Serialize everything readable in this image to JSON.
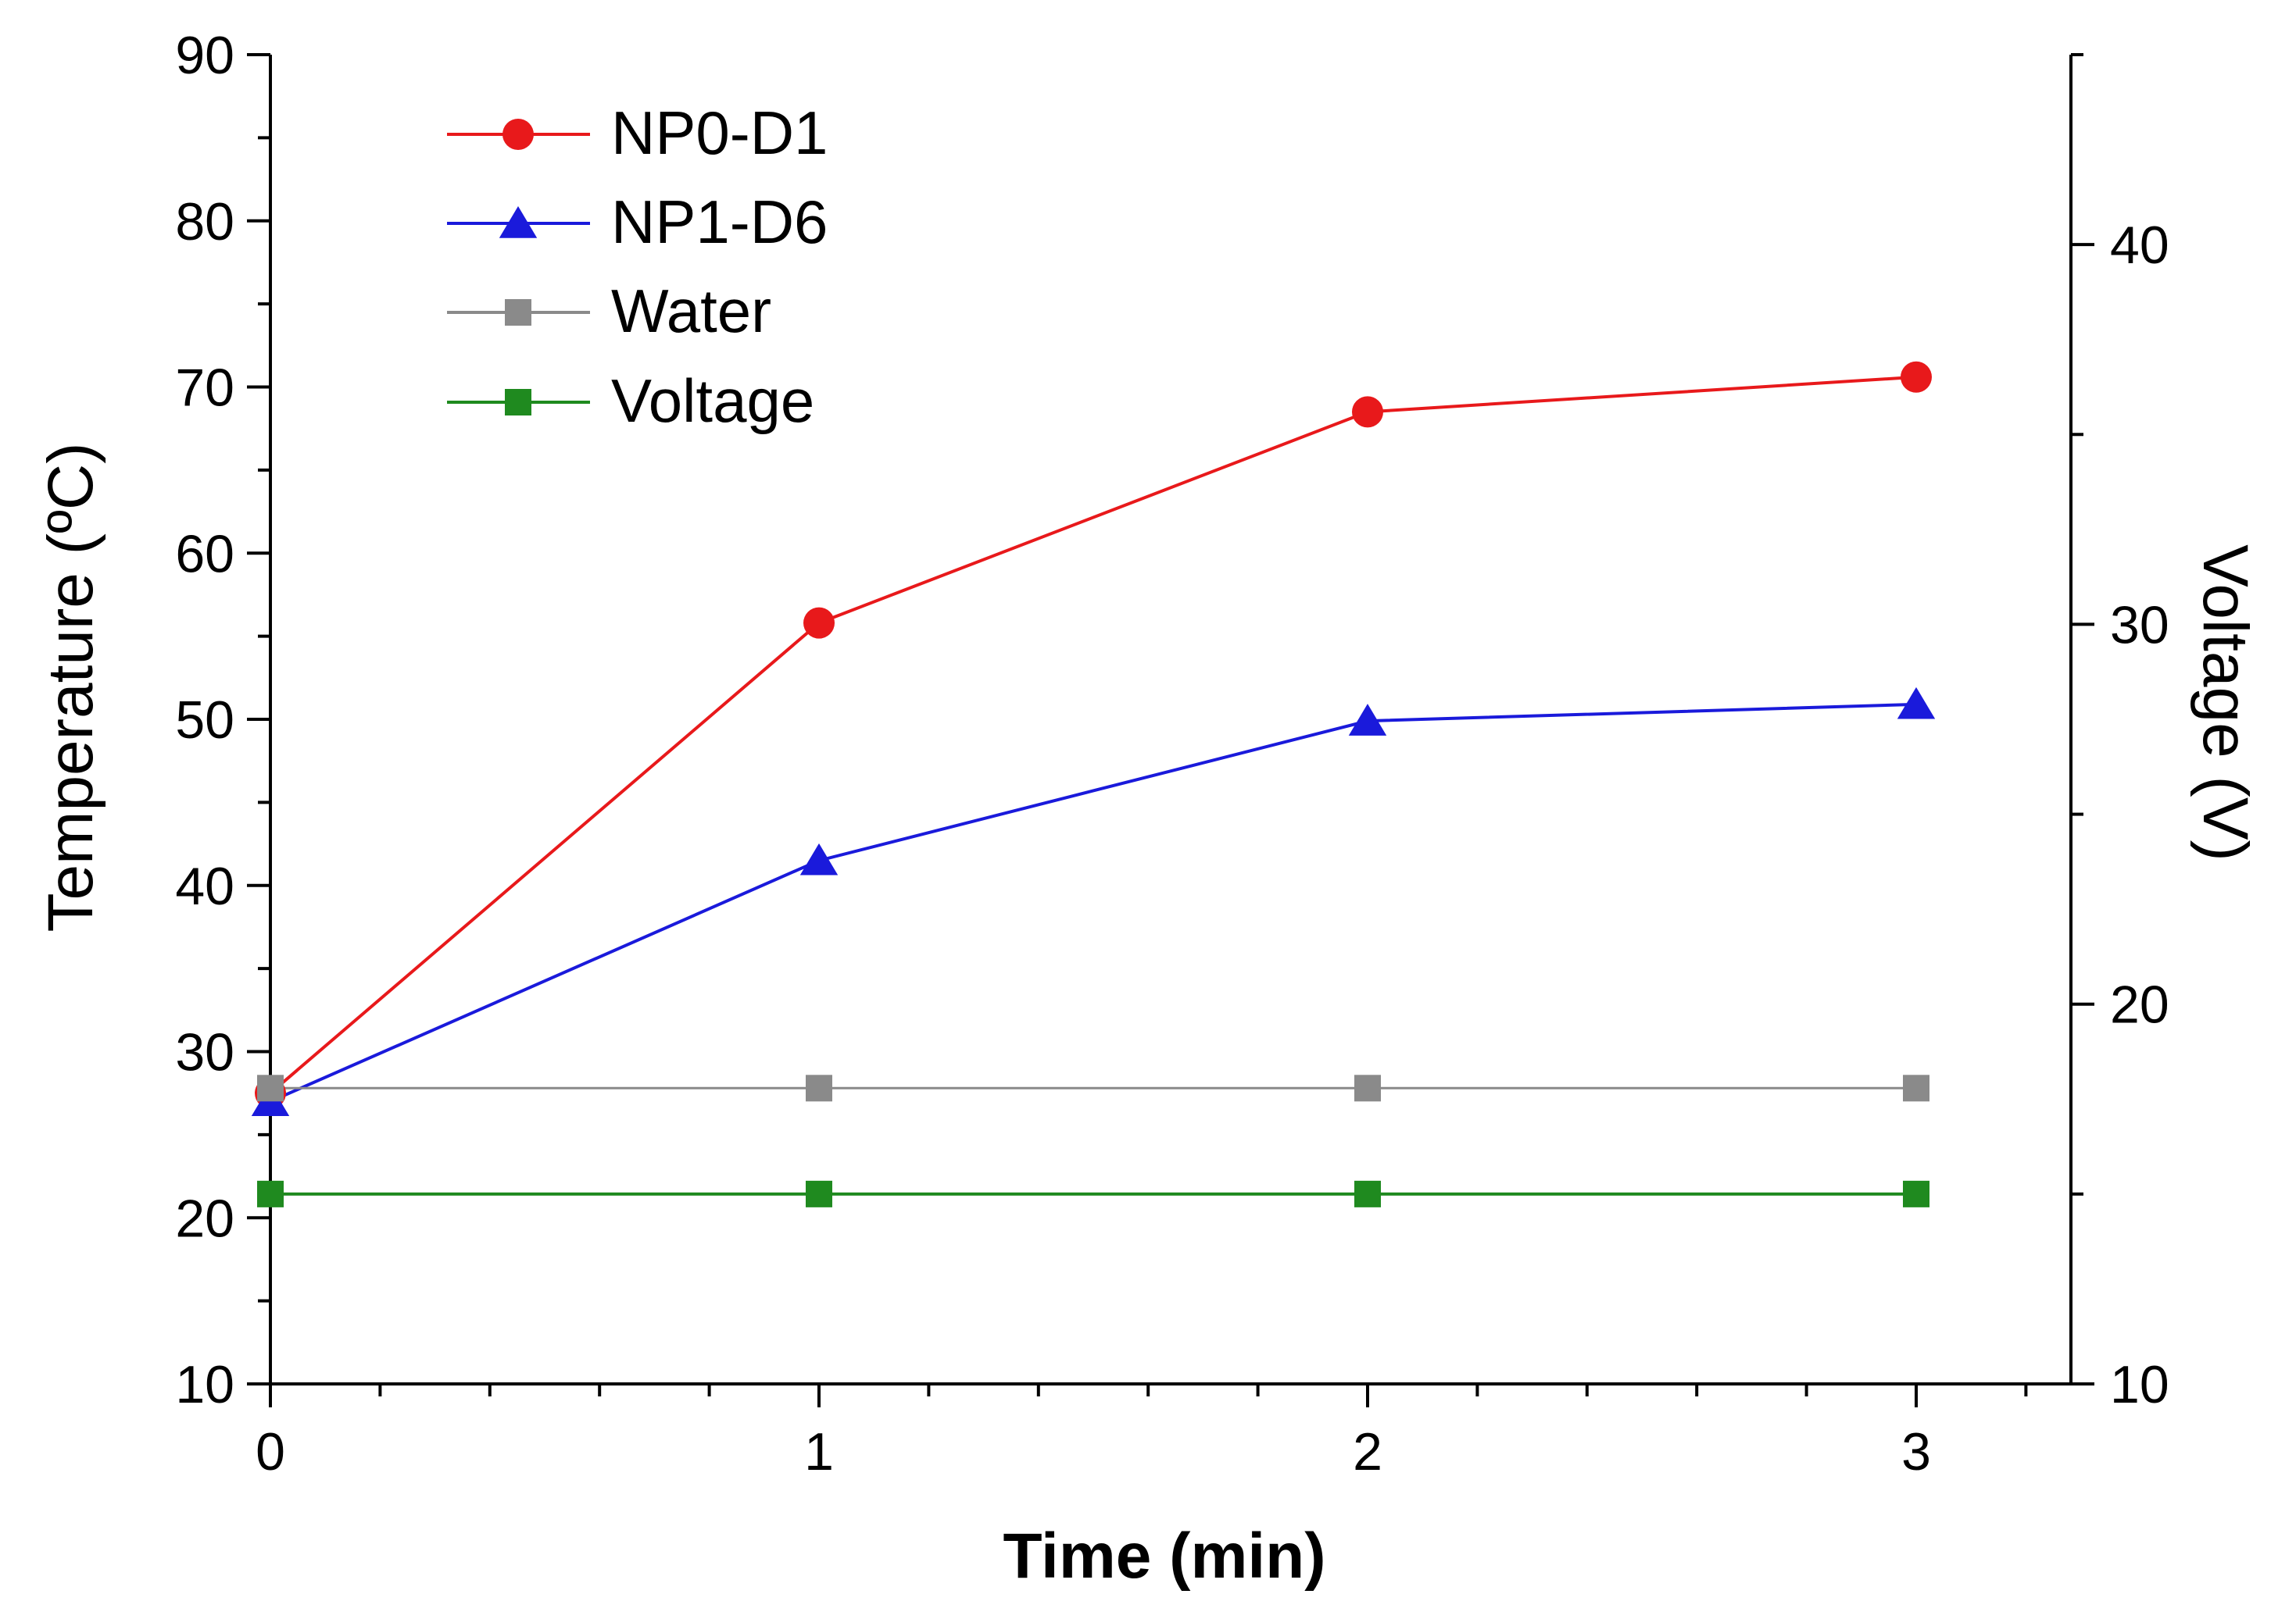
{
  "chart_data": {
    "type": "line",
    "xlabel": "Time (min)",
    "ylabel": "Temperature (ºC)",
    "y2label": "Voltage (V)",
    "x": [
      0,
      1,
      2,
      3
    ],
    "xlim": [
      0,
      3.25
    ],
    "ylim": [
      10,
      90
    ],
    "y2lim": [
      10,
      45
    ],
    "xticks": [
      "0",
      "1",
      "2",
      "3"
    ],
    "yticks": [
      "10",
      "20",
      "30",
      "40",
      "50",
      "60",
      "70",
      "80",
      "90"
    ],
    "y2ticks": [
      "10",
      "20",
      "30",
      "40"
    ],
    "grid": false,
    "legend_position": "top-left",
    "series": [
      {
        "name": "NP0-D1",
        "axis": "left",
        "marker": "circle",
        "color": "#e8191b",
        "values": [
          27.5,
          55.8,
          68.5,
          70.6
        ]
      },
      {
        "name": "NP1-D6",
        "axis": "left",
        "marker": "triangle",
        "color": "#1a1adb",
        "values": [
          27.0,
          41.5,
          49.9,
          50.9
        ]
      },
      {
        "name": "Water",
        "axis": "left",
        "marker": "square",
        "color": "#8a8a8a",
        "values": [
          27.8,
          27.8,
          27.8,
          27.8
        ]
      },
      {
        "name": "Voltage",
        "axis": "right",
        "marker": "square",
        "color": "#1f8a1f",
        "values": [
          15.0,
          15.0,
          15.0,
          15.0
        ]
      }
    ]
  }
}
